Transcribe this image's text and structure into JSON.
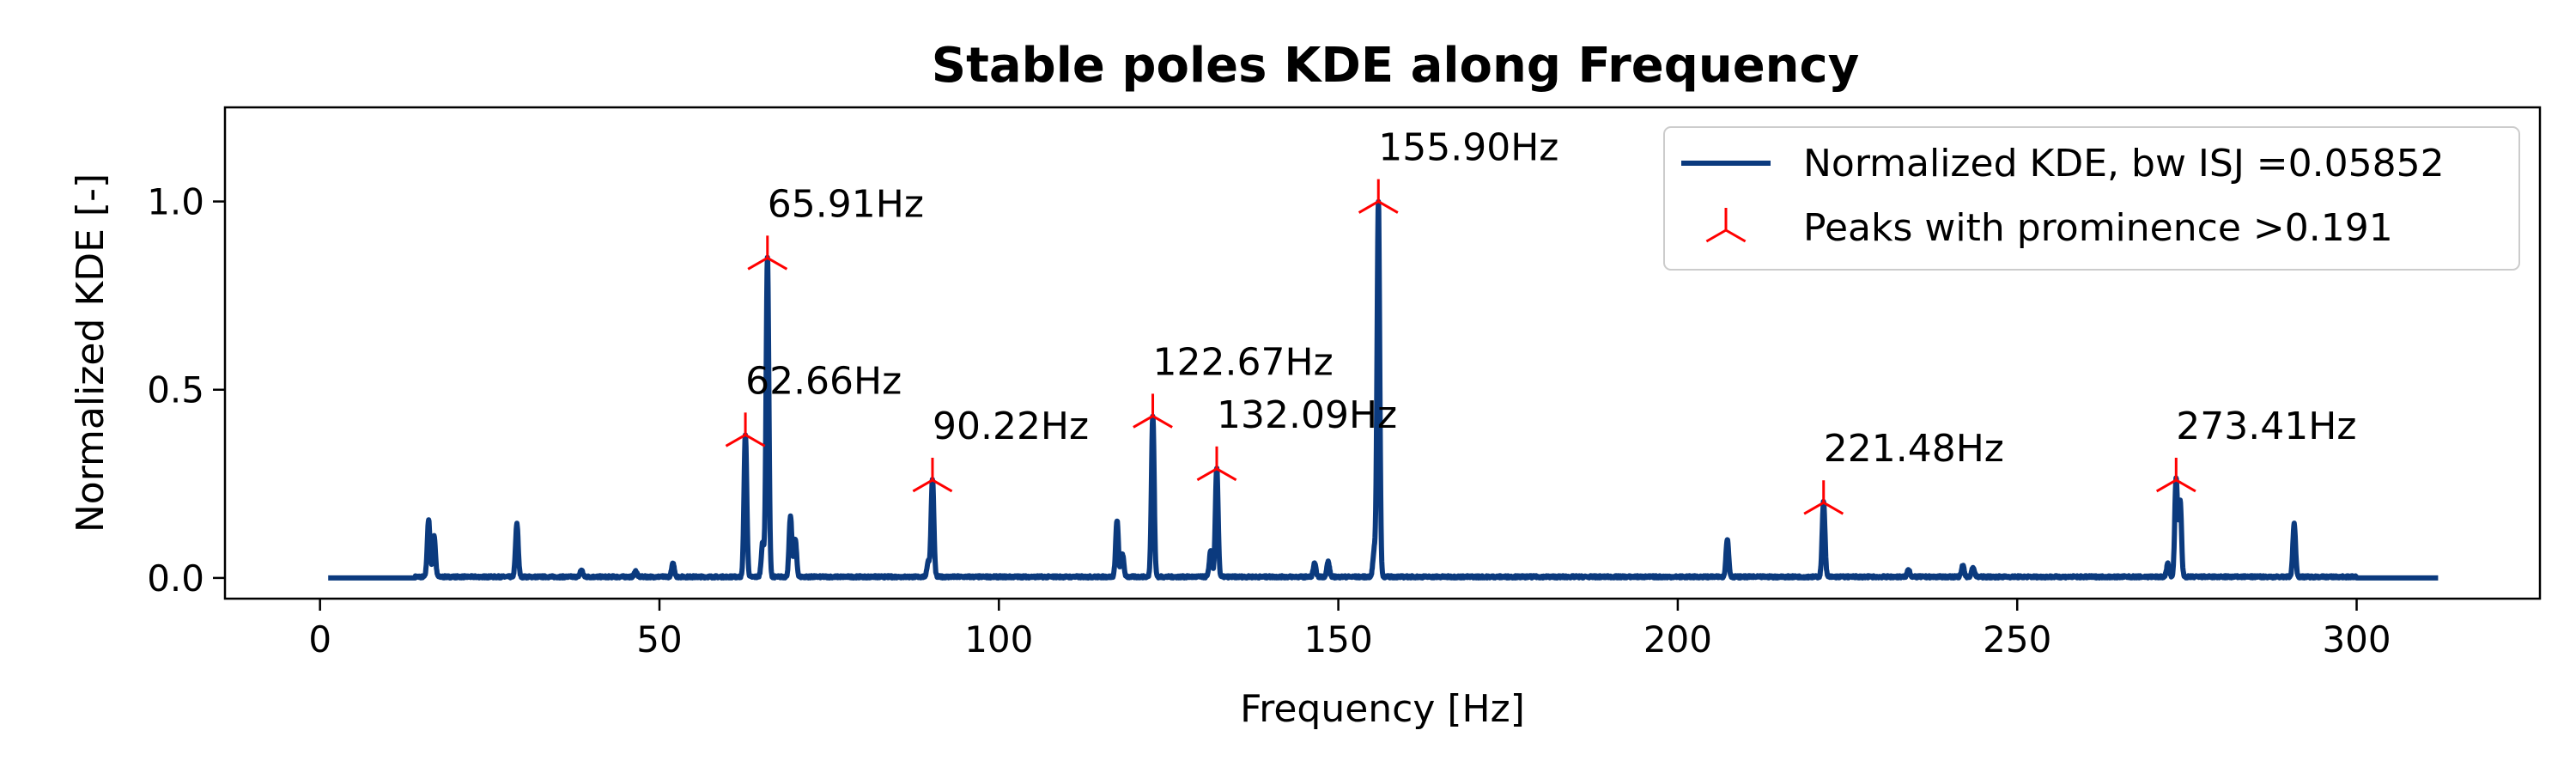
{
  "chart_data": {
    "type": "line",
    "title": "Stable poles KDE along Frequency",
    "xlabel": "Frequency [Hz]",
    "ylabel": "Normalized KDE [-]",
    "xlim": [
      -14,
      327
    ],
    "ylim": [
      -0.055,
      1.25
    ],
    "xticks": [
      0,
      50,
      100,
      150,
      200,
      250,
      300
    ],
    "yticks": [
      0.0,
      0.5,
      1.0
    ],
    "xtick_labels": [
      "0",
      "50",
      "100",
      "150",
      "200",
      "250",
      "300"
    ],
    "ytick_labels": [
      "0.0",
      "0.5",
      "1.0"
    ],
    "grid": false,
    "legend_position": "top-right",
    "colors": {
      "line": "#0b3a7e",
      "peak": "#ff0000"
    },
    "x_range": [
      1.2,
      312
    ],
    "series": [
      {
        "name": "Normalized KDE, bw ISJ =0.05852",
        "kind": "line"
      },
      {
        "name": "Peaks with prominence >0.191",
        "kind": "marker"
      }
    ],
    "peaks": [
      {
        "x": 16.0,
        "y": 0.15
      },
      {
        "x": 16.8,
        "y": 0.11
      },
      {
        "x": 29.0,
        "y": 0.14
      },
      {
        "x": 38.5,
        "y": 0.018
      },
      {
        "x": 46.5,
        "y": 0.015
      },
      {
        "x": 52.0,
        "y": 0.035
      },
      {
        "x": 62.66,
        "y": 0.38
      },
      {
        "x": 65.2,
        "y": 0.09
      },
      {
        "x": 65.91,
        "y": 0.85
      },
      {
        "x": 69.3,
        "y": 0.16
      },
      {
        "x": 70.0,
        "y": 0.1
      },
      {
        "x": 89.6,
        "y": 0.04
      },
      {
        "x": 90.22,
        "y": 0.26
      },
      {
        "x": 117.4,
        "y": 0.15
      },
      {
        "x": 118.2,
        "y": 0.06
      },
      {
        "x": 122.67,
        "y": 0.43
      },
      {
        "x": 131.2,
        "y": 0.07
      },
      {
        "x": 132.09,
        "y": 0.29
      },
      {
        "x": 146.5,
        "y": 0.035
      },
      {
        "x": 148.5,
        "y": 0.04
      },
      {
        "x": 155.3,
        "y": 0.07
      },
      {
        "x": 155.9,
        "y": 1.0
      },
      {
        "x": 207.3,
        "y": 0.1
      },
      {
        "x": 221.48,
        "y": 0.2
      },
      {
        "x": 234.0,
        "y": 0.02
      },
      {
        "x": 242.0,
        "y": 0.03
      },
      {
        "x": 243.5,
        "y": 0.025
      },
      {
        "x": 272.2,
        "y": 0.035
      },
      {
        "x": 273.41,
        "y": 0.26
      },
      {
        "x": 274.0,
        "y": 0.2
      },
      {
        "x": 290.8,
        "y": 0.14
      }
    ],
    "peak_markers": [
      {
        "x": 62.66,
        "y": 0.38,
        "label": "62.66Hz"
      },
      {
        "x": 65.91,
        "y": 0.85,
        "label": "65.91Hz"
      },
      {
        "x": 90.22,
        "y": 0.26,
        "label": "90.22Hz"
      },
      {
        "x": 122.67,
        "y": 0.43,
        "label": "122.67Hz"
      },
      {
        "x": 132.09,
        "y": 0.29,
        "label": "132.09Hz"
      },
      {
        "x": 155.9,
        "y": 1.0,
        "label": "155.90Hz"
      },
      {
        "x": 221.48,
        "y": 0.2,
        "label": "221.48Hz"
      },
      {
        "x": 273.41,
        "y": 0.26,
        "label": "273.41Hz"
      }
    ]
  }
}
